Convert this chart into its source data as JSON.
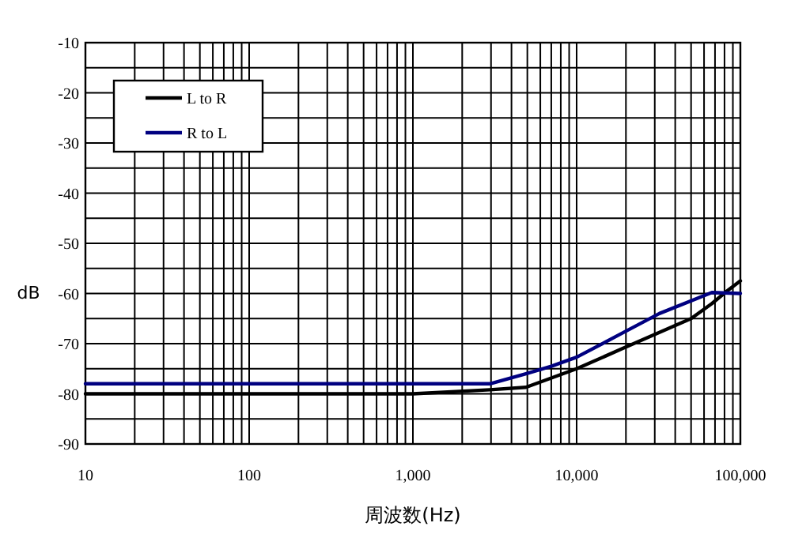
{
  "chart_data": {
    "type": "line",
    "xlabel": "周波数(Hz)",
    "ylabel": "dB",
    "log": "x",
    "grid": true,
    "legend": "top left",
    "marker": "none",
    "line_style": "solid",
    "xlim": [
      10,
      100000
    ],
    "ylim": [
      -90,
      -10
    ],
    "xticks": [
      10,
      {
        "value": 20,
        "label": null
      },
      {
        "value": 30,
        "label": null
      },
      {
        "value": 40,
        "label": null
      },
      {
        "value": 50,
        "label": null
      },
      {
        "value": 60,
        "label": null
      },
      {
        "value": 70,
        "label": null
      },
      {
        "value": 80,
        "label": null
      },
      {
        "value": 90,
        "label": null
      },
      100,
      {
        "value": 200,
        "label": null
      },
      {
        "value": 300,
        "label": null
      },
      {
        "value": 400,
        "label": null
      },
      {
        "value": 500,
        "label": null
      },
      {
        "value": 600,
        "label": null
      },
      {
        "value": 700,
        "label": null
      },
      {
        "value": 800,
        "label": null
      },
      {
        "value": 900,
        "label": null
      },
      {
        "value": 1000,
        "label": "1,000"
      },
      {
        "value": 2000,
        "label": null
      },
      {
        "value": 3000,
        "label": null
      },
      {
        "value": 4000,
        "label": null
      },
      {
        "value": 5000,
        "label": null
      },
      {
        "value": 6000,
        "label": null
      },
      {
        "value": 7000,
        "label": null
      },
      {
        "value": 8000,
        "label": null
      },
      {
        "value": 9000,
        "label": null
      },
      {
        "value": 10000,
        "label": "10,000"
      },
      {
        "value": 20000,
        "label": null
      },
      {
        "value": 30000,
        "label": null
      },
      {
        "value": 40000,
        "label": null
      },
      {
        "value": 50000,
        "label": null
      },
      {
        "value": 60000,
        "label": null
      },
      {
        "value": 70000,
        "label": null
      },
      {
        "value": 80000,
        "label": null
      },
      {
        "value": 90000,
        "label": null
      },
      {
        "value": 100000,
        "label": "100,000"
      }
    ],
    "yticks": [
      -90,
      {
        "value": -85,
        "label": null
      },
      -80,
      {
        "value": -75,
        "label": null
      },
      -70,
      {
        "value": -65,
        "label": null
      },
      -60,
      {
        "value": -55,
        "label": null
      },
      -50,
      {
        "value": -45,
        "label": null
      },
      -40,
      {
        "value": -35,
        "label": null
      },
      -30,
      {
        "value": -25,
        "label": null
      },
      -20,
      {
        "value": -15,
        "label": null
      },
      -10
    ],
    "series": [
      {
        "name": "L to R",
        "color": "#000000",
        "x": [
          10,
          100,
          1000,
          2950,
          4900,
          10000,
          19000,
          50000,
          67000,
          83000,
          100000
        ],
        "values": [
          -80,
          -80,
          -80,
          -79.2,
          -78.7,
          -75,
          -71,
          -65,
          -62,
          -59.5,
          -57.5
        ]
      },
      {
        "name": "R to L",
        "color": "#000080",
        "x": [
          10,
          100,
          1000,
          2950,
          4900,
          7000,
          10000,
          19000,
          32000,
          67000,
          100000
        ],
        "values": [
          -78,
          -78,
          -78,
          -78,
          -76,
          -74.5,
          -72.7,
          -67.9,
          -64,
          -59.8,
          -60
        ]
      }
    ]
  }
}
